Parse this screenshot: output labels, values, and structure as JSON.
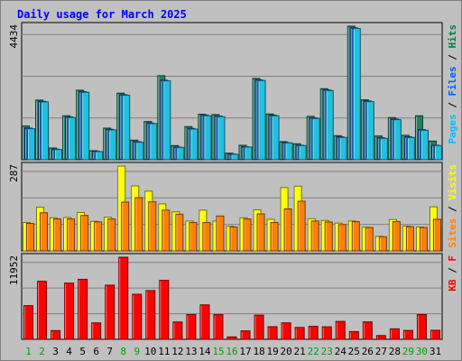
{
  "chart_data": {
    "type": "bar",
    "title": "Daily usage for March 2025",
    "days": [
      "1",
      "2",
      "3",
      "4",
      "5",
      "6",
      "7",
      "8",
      "9",
      "10",
      "11",
      "12",
      "13",
      "14",
      "15",
      "16",
      "17",
      "18",
      "19",
      "20",
      "21",
      "22",
      "23",
      "24",
      "25",
      "26",
      "27",
      "28",
      "29",
      "30",
      "31"
    ],
    "weekend_days": [
      "1",
      "2",
      "8",
      "9",
      "15",
      "16",
      "22",
      "23",
      "29",
      "30"
    ],
    "panels": [
      {
        "id": "hits",
        "max_label": "4434",
        "ymax": 4434,
        "legend": [
          "Pages",
          "Files",
          "Hits"
        ],
        "series": [
          {
            "name": "Hits",
            "color": "#208060",
            "values": [
              1120,
              1980,
              390,
              1460,
              2310,
              300,
              1050,
              2210,
              650,
              1270,
              2790,
              470,
              1100,
              1510,
              1500,
              220,
              480,
              2700,
              1520,
              600,
              530,
              1440,
              2360,
              800,
              4434,
              1990,
              790,
              1400,
              810,
              1460,
              620
            ]
          },
          {
            "name": "Files",
            "color": "#2060c0",
            "values": [
              1050,
              1940,
              350,
              1420,
              2260,
              280,
              1010,
              2160,
              600,
              1220,
              2640,
              420,
              1040,
              1480,
              1450,
              190,
              430,
              2650,
              1480,
              570,
              480,
              1390,
              2320,
              760,
              4380,
              1950,
              730,
              1350,
              760,
              1000,
              480
            ]
          },
          {
            "name": "Pages",
            "color": "#20c0e0",
            "values": [
              1030,
              1920,
              340,
              1400,
              2240,
              270,
              990,
              2140,
              580,
              1200,
              2620,
              410,
              1020,
              1460,
              1430,
              180,
              420,
              2630,
              1460,
              560,
              470,
              1370,
              2300,
              740,
              4360,
              1930,
              710,
              1330,
              740,
              980,
              470
            ]
          }
        ]
      },
      {
        "id": "visits",
        "max_label": "287",
        "ymax": 287,
        "legend": [
          "Sites",
          "Visits"
        ],
        "series": [
          {
            "name": "Visits",
            "color": "#ffff00",
            "values": [
              96,
              148,
              112,
              113,
              130,
              100,
              114,
              287,
              220,
              202,
              159,
              132,
              101,
              138,
              101,
              83,
              112,
              139,
              107,
              214,
              219,
              109,
              103,
              94,
              101,
              80,
              49,
              106,
              84,
              81,
              149
            ]
          },
          {
            "name": "Sites",
            "color": "#ff8000",
            "values": [
              93,
              129,
              108,
              108,
              120,
              98,
              108,
              165,
              180,
              166,
              138,
              124,
              96,
              96,
              118,
              81,
              108,
              125,
              96,
              142,
              168,
              101,
              98,
              89,
              99,
              79,
              48,
              99,
              82,
              79,
              107
            ]
          }
        ]
      },
      {
        "id": "kbytes",
        "max_label": "11952",
        "ymax": 11952,
        "legend": [
          "KB",
          "F"
        ],
        "series": [
          {
            "name": "KB",
            "color": "#ff0000",
            "values": [
              4900,
              8450,
              1270,
              8180,
              8740,
              2400,
              7880,
              11952,
              6560,
              7100,
              8590,
              2530,
              3600,
              5020,
              3600,
              360,
              1230,
              3520,
              1840,
              2400,
              1730,
              1890,
              1820,
              2610,
              1130,
              2540,
              550,
              1530,
              1300,
              3610,
              1320
            ]
          }
        ]
      }
    ]
  }
}
